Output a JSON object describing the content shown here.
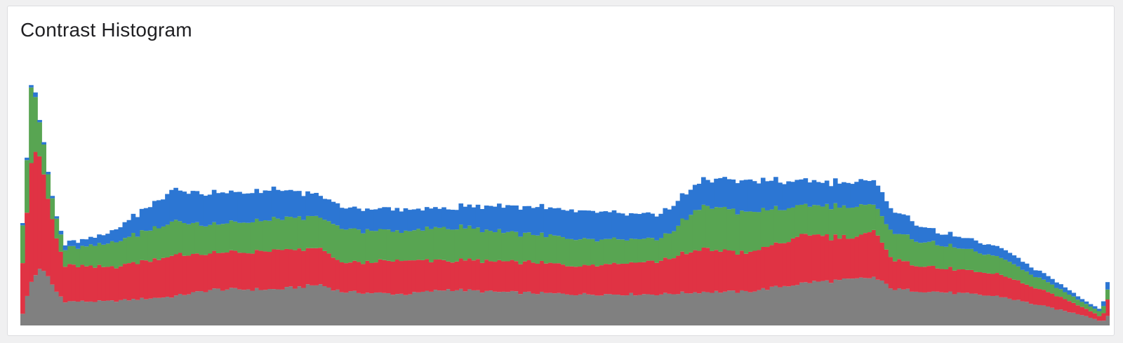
{
  "panel": {
    "title": "Contrast Histogram"
  },
  "chart_data": {
    "type": "bar",
    "stacked": true,
    "bins": 256,
    "grid": false,
    "legend": "none",
    "title": "Contrast Histogram",
    "ylim": [
      0,
      100
    ],
    "series": [
      {
        "color": "#808080",
        "profile": [
          [
            0,
            5
          ],
          [
            1,
            12
          ],
          [
            2,
            18
          ],
          [
            4,
            24
          ],
          [
            6,
            20
          ],
          [
            8,
            14
          ],
          [
            10,
            10
          ],
          [
            20,
            10
          ],
          [
            35,
            12
          ],
          [
            45,
            15
          ],
          [
            60,
            15
          ],
          [
            70,
            17
          ],
          [
            75,
            14
          ],
          [
            90,
            13
          ],
          [
            100,
            15
          ],
          [
            110,
            14
          ],
          [
            130,
            13
          ],
          [
            150,
            13
          ],
          [
            160,
            14
          ],
          [
            170,
            14
          ],
          [
            185,
            18
          ],
          [
            195,
            19
          ],
          [
            200,
            20
          ],
          [
            205,
            15
          ],
          [
            215,
            14
          ],
          [
            230,
            12
          ],
          [
            245,
            6
          ],
          [
            250,
            4
          ],
          [
            253,
            2
          ],
          [
            254,
            2
          ],
          [
            255,
            4
          ]
        ]
      },
      {
        "color": "#e03344",
        "profile": [
          [
            0,
            22
          ],
          [
            1,
            36
          ],
          [
            2,
            50
          ],
          [
            3,
            52
          ],
          [
            4,
            45
          ],
          [
            5,
            40
          ],
          [
            6,
            32
          ],
          [
            8,
            22
          ],
          [
            10,
            15
          ],
          [
            20,
            14
          ],
          [
            35,
            17
          ],
          [
            45,
            15
          ],
          [
            60,
            16
          ],
          [
            70,
            15
          ],
          [
            75,
            12
          ],
          [
            90,
            14
          ],
          [
            100,
            12
          ],
          [
            115,
            13
          ],
          [
            130,
            12
          ],
          [
            150,
            14
          ],
          [
            160,
            18
          ],
          [
            170,
            16
          ],
          [
            185,
            20
          ],
          [
            195,
            17
          ],
          [
            200,
            19
          ],
          [
            205,
            12
          ],
          [
            215,
            10
          ],
          [
            230,
            9
          ],
          [
            245,
            5
          ],
          [
            250,
            3
          ],
          [
            253,
            2
          ],
          [
            254,
            3
          ],
          [
            255,
            7
          ]
        ]
      },
      {
        "color": "#58a552",
        "profile": [
          [
            0,
            16
          ],
          [
            1,
            22
          ],
          [
            2,
            32
          ],
          [
            3,
            22
          ],
          [
            4,
            14
          ],
          [
            6,
            10
          ],
          [
            8,
            8
          ],
          [
            10,
            7
          ],
          [
            20,
            10
          ],
          [
            35,
            14
          ],
          [
            45,
            12
          ],
          [
            60,
            13
          ],
          [
            70,
            13
          ],
          [
            75,
            14
          ],
          [
            90,
            12
          ],
          [
            100,
            14
          ],
          [
            115,
            12
          ],
          [
            130,
            11
          ],
          [
            150,
            9
          ],
          [
            160,
            18
          ],
          [
            170,
            17
          ],
          [
            185,
            12
          ],
          [
            195,
            13
          ],
          [
            200,
            11
          ],
          [
            205,
            11
          ],
          [
            215,
            10
          ],
          [
            230,
            7
          ],
          [
            245,
            3
          ],
          [
            250,
            2
          ],
          [
            253,
            2
          ],
          [
            254,
            3
          ],
          [
            255,
            4
          ]
        ]
      },
      {
        "color": "#2c76d3",
        "profile": [
          [
            0,
            1
          ],
          [
            1,
            1
          ],
          [
            2,
            1
          ],
          [
            3,
            2
          ],
          [
            4,
            1
          ],
          [
            6,
            1
          ],
          [
            8,
            1
          ],
          [
            10,
            2
          ],
          [
            20,
            4
          ],
          [
            35,
            13
          ],
          [
            45,
            13
          ],
          [
            60,
            12
          ],
          [
            70,
            9
          ],
          [
            75,
            9
          ],
          [
            90,
            9
          ],
          [
            100,
            8
          ],
          [
            115,
            11
          ],
          [
            130,
            12
          ],
          [
            150,
            10
          ],
          [
            160,
            11
          ],
          [
            170,
            13
          ],
          [
            185,
            10
          ],
          [
            195,
            10
          ],
          [
            200,
            10
          ],
          [
            205,
            9
          ],
          [
            215,
            5
          ],
          [
            230,
            4
          ],
          [
            245,
            2
          ],
          [
            250,
            1
          ],
          [
            253,
            1
          ],
          [
            254,
            2
          ],
          [
            255,
            3
          ]
        ]
      }
    ]
  }
}
